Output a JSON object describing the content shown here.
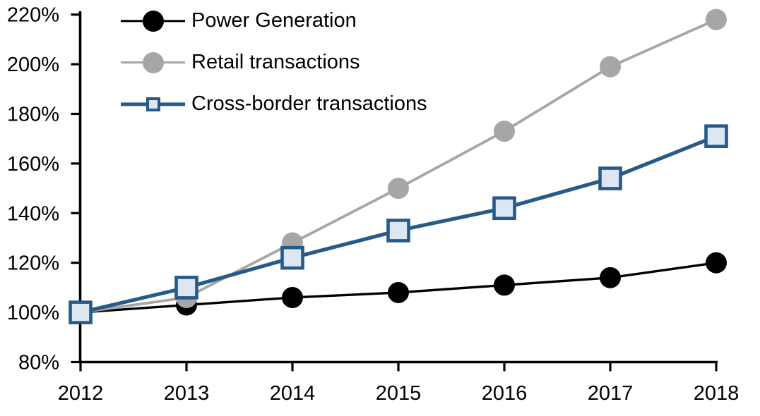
{
  "figure": {
    "background": "#ffffff"
  },
  "chart_data": {
    "type": "line",
    "title": "",
    "xlabel": "",
    "ylabel": "",
    "x": [
      2012,
      2013,
      2014,
      2015,
      2016,
      2017,
      2018
    ],
    "x_tick_labels": [
      "2012",
      "2013",
      "2014",
      "2015",
      "2016",
      "2017",
      "2018"
    ],
    "y_tick_labels": [
      "80%",
      "100%",
      "120%",
      "140%",
      "160%",
      "180%",
      "200%",
      "220%"
    ],
    "ylim": [
      80,
      220
    ],
    "ytick_step": 20,
    "ytick_format": "percent",
    "grid": false,
    "legend_position": "top-left",
    "series": [
      {
        "name": "Power Generation",
        "color": "#000000",
        "marker": "circle",
        "marker_fill": "#000000",
        "values": [
          100,
          103,
          106,
          108,
          111,
          114,
          120
        ]
      },
      {
        "name": "Retail transactions",
        "color": "#a6a6a6",
        "marker": "circle",
        "marker_fill": "#a6a6a6",
        "values": [
          100,
          106,
          128,
          150,
          173,
          199,
          218
        ]
      },
      {
        "name": "Cross-border transactions",
        "color": "#265a88",
        "marker": "square",
        "marker_fill": "#dce7f3",
        "values": [
          100,
          110,
          122,
          133,
          142,
          154,
          171
        ]
      }
    ]
  }
}
